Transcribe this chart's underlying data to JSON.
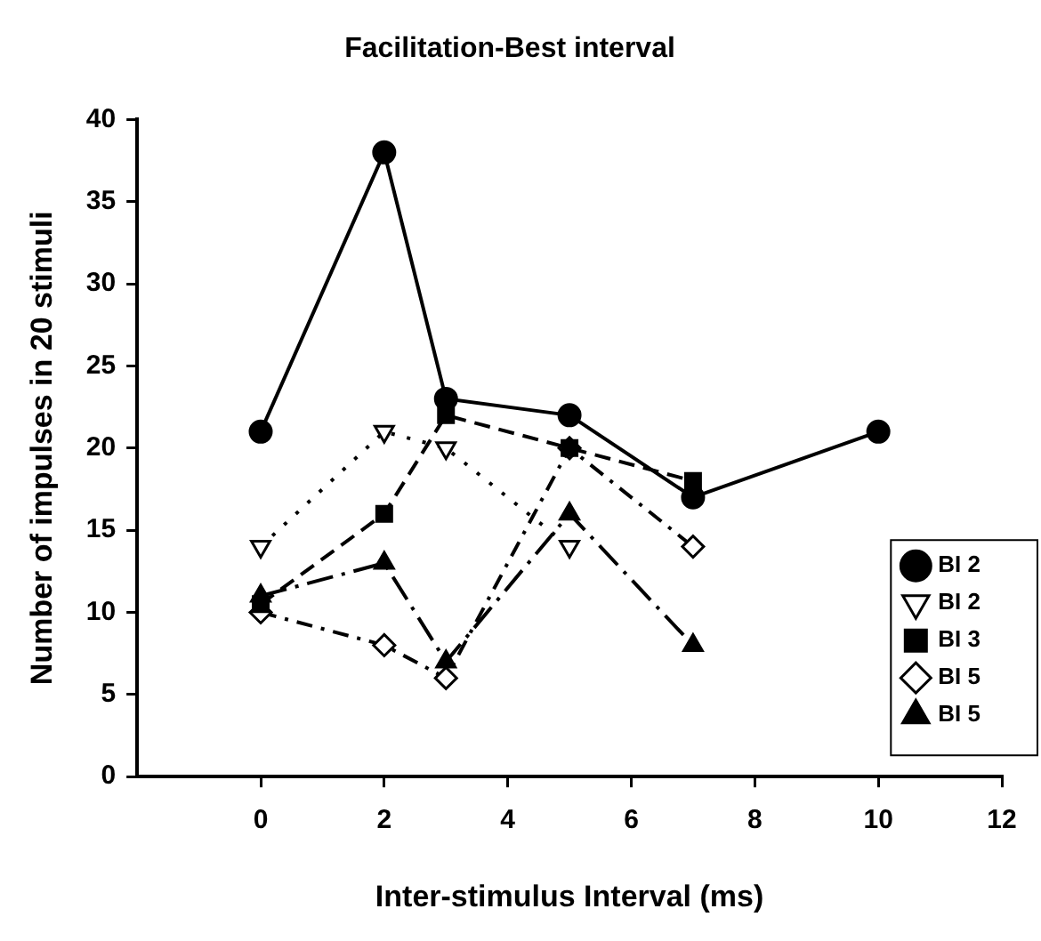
{
  "chart_data": {
    "type": "line",
    "title": "Facilitation-Best interval",
    "xlabel": "Inter-stimulus Interval (ms)",
    "ylabel": "Number of impulses in 20 stimuli",
    "xlim": [
      -2,
      12
    ],
    "xticks": [
      0,
      2,
      4,
      6,
      8,
      10,
      12
    ],
    "ylim": [
      0,
      40
    ],
    "yticks": [
      0,
      5,
      10,
      15,
      20,
      25,
      30,
      35,
      40
    ],
    "grid": false,
    "legend": "bottom right",
    "series": [
      {
        "name": "BI 2",
        "color": "#000000",
        "marker": "circle",
        "line_style": "solid",
        "x": [
          0,
          2,
          3,
          5,
          7,
          10
        ],
        "values": [
          21,
          38,
          23,
          22,
          17,
          21
        ]
      },
      {
        "name": "BI 2",
        "color": "#000000",
        "marker": "triangle-down-open",
        "line_style": "dotted",
        "x": [
          0,
          2,
          3,
          5
        ],
        "values": [
          14,
          21,
          20,
          14
        ]
      },
      {
        "name": "BI 3",
        "color": "#000000",
        "marker": "square",
        "line_style": "dashed",
        "x": [
          0,
          2,
          3,
          5,
          7
        ],
        "values": [
          10.5,
          16,
          22,
          20,
          18
        ]
      },
      {
        "name": "BI 5",
        "color": "#000000",
        "marker": "diamond-open",
        "line_style": "dashdot",
        "x": [
          0,
          2,
          3,
          5,
          7
        ],
        "values": [
          10,
          8,
          6,
          20,
          14
        ]
      },
      {
        "name": "BI 5",
        "color": "#000000",
        "marker": "triangle",
        "line_style": "longdashdot",
        "x": [
          0,
          2,
          3,
          5,
          7
        ],
        "values": [
          11,
          13,
          7,
          16,
          8
        ]
      }
    ]
  }
}
